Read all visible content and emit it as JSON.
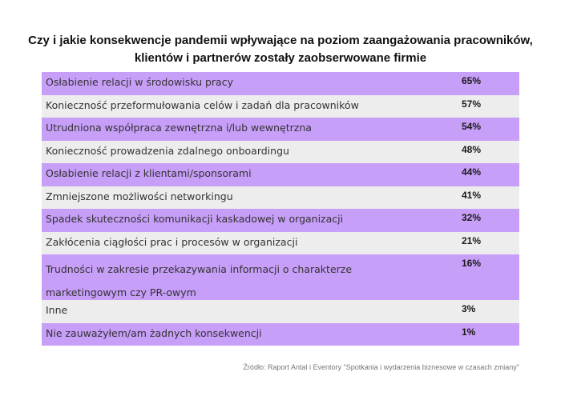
{
  "title": "Czy i jakie konsekwencje pandemii wpływające na poziom zaangażowania pracowników, klientów i partnerów zostały zaobserwowane firmie",
  "chart_data": {
    "type": "table",
    "categories": [
      "Osłabienie relacji w środowisku pracy",
      "Konieczność przeformułowania celów i zadań dla pracowników",
      "Utrudniona współpraca zewnętrzna i/lub wewnętrzna",
      "Konieczność prowadzenia zdalnego onboardingu",
      "Osłabienie relacji z klientami/sponsorami",
      "Zmniejszone możliwości networkingu",
      "Spadek skuteczności komunikacji kaskadowej w organizacji",
      "Zakłócenia ciągłości prac i procesów w organizacji",
      "Trudności w zakresie przekazywania informacji o charakterze marketingowym czy PR-owym",
      "Inne",
      "Nie zauważyłem/am żadnych konsekwencji"
    ],
    "values": [
      65,
      57,
      54,
      48,
      44,
      41,
      32,
      21,
      16,
      3,
      1
    ],
    "value_labels": [
      "65%",
      "57%",
      "54%",
      "48%",
      "44%",
      "41%",
      "32%",
      "21%",
      "16%",
      "3%",
      "1%"
    ],
    "label_lines": [
      [
        "Osłabienie relacji w środowisku pracy"
      ],
      [
        "Konieczność przeformułowania celów i zadań dla pracowników"
      ],
      [
        "Utrudniona współpraca zewnętrzna i/lub wewnętrzna"
      ],
      [
        "Konieczność prowadzenia zdalnego onboardingu"
      ],
      [
        "Osłabienie relacji z klientami/sponsorami"
      ],
      [
        "Zmniejszone możliwości networkingu"
      ],
      [
        "Spadek skuteczności komunikacji kaskadowej w organizacji"
      ],
      [
        "Zakłócenia ciągłości prac i procesów w organizacji"
      ],
      [
        "Trudności w zakresie przekazywania informacji o charakterze",
        "marketingowym czy PR-owym"
      ],
      [
        "Inne"
      ],
      [
        "Nie zauważyłem/am żadnych konsekwencji"
      ]
    ],
    "row_colors": [
      "#c79ef8",
      "#ededed"
    ]
  },
  "source": "Źródło: Raport Antal i Eventory \"Spotkania i wydarzenia biznesowe w czasach zmiany\""
}
